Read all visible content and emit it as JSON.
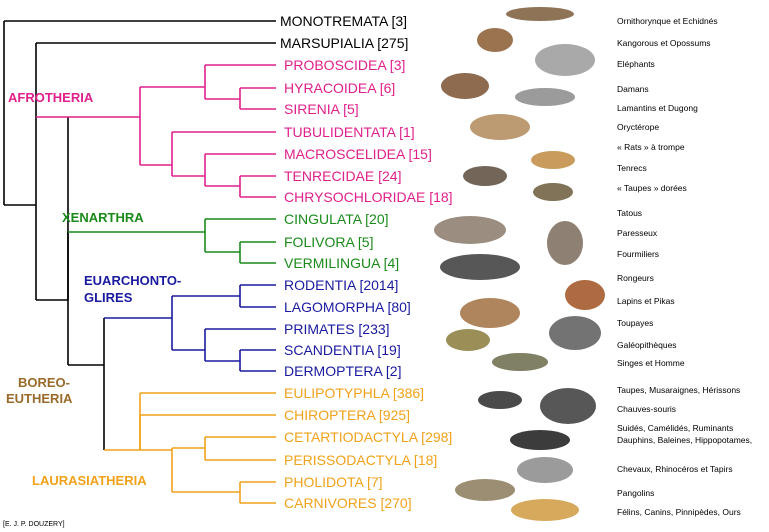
{
  "taxa": [
    {
      "name": "MONOTREMATA [3]",
      "color": "#000000",
      "common": "Ornithorynque et Echidnés"
    },
    {
      "name": "MARSUPIALIA [275]",
      "color": "#000000",
      "common": "Kangorous et Opossums"
    },
    {
      "name": "PROBOSCIDEA [3]",
      "color": "#e0208c",
      "common": "Eléphants"
    },
    {
      "name": "HYRACOIDEA [6]",
      "color": "#e0208c",
      "common": "Damans"
    },
    {
      "name": "SIRENIA [5]",
      "color": "#e0208c",
      "common": "Lamantins et Dugong"
    },
    {
      "name": "TUBULIDENTATA [1]",
      "color": "#e0208c",
      "common": "Oryctérope"
    },
    {
      "name": "MACROSCELIDEA [15]",
      "color": "#e0208c",
      "common": "« Rats » à trompe"
    },
    {
      "name": "TENRECIDAE [24]",
      "color": "#e0208c",
      "common": "Tenrecs"
    },
    {
      "name": "CHRYSOCHLORIDAE [18]",
      "color": "#e0208c",
      "common": "« Taupes » dorées"
    },
    {
      "name": "CINGULATA [20]",
      "color": "#1a8a1a",
      "common": "Tatous"
    },
    {
      "name": "FOLIVORA [5]",
      "color": "#1a8a1a",
      "common": "Paresseux"
    },
    {
      "name": "VERMILINGUA [4]",
      "color": "#1a8a1a",
      "common": "Fourmiliers"
    },
    {
      "name": "RODENTIA [2014]",
      "color": "#1a1aa0",
      "common": "Rongeurs"
    },
    {
      "name": "LAGOMORPHA [80]",
      "color": "#1a1aa0",
      "common": "Lapins et Pikas"
    },
    {
      "name": "PRIMATES [233]",
      "color": "#1a1aa0",
      "common": "Toupayes"
    },
    {
      "name": "SCANDENTIA [19]",
      "color": "#1a1aa0",
      "common": "Galéopithèques"
    },
    {
      "name": "DERMOPTERA [2]",
      "color": "#1a1aa0",
      "common": "Singes et Homme"
    },
    {
      "name": "EULIPOTYPHLA [386]",
      "color": "#f2a21a",
      "common": "Taupes, Musaraignes, Hérissons"
    },
    {
      "name": "CHIROPTERA [925]",
      "color": "#f2a21a",
      "common": "Chauves-souris"
    },
    {
      "name": "CETARTIODACTYLA [298]",
      "color": "#f2a21a",
      "common": "Suidés, Camélidés, Ruminants\nDauphins, Baleines, Hippopotames,"
    },
    {
      "name": "PERISSODACTYLA [18]",
      "color": "#f2a21a",
      "common": "Chevaux, Rhinocéros et Tapirs"
    },
    {
      "name": "PHOLIDOTA [7]",
      "color": "#f2a21a",
      "common": "Pangolins"
    },
    {
      "name": "CARNIVORES [270]",
      "color": "#f2a21a",
      "common": "Félins, Canins, Pinnipèdes, Ours"
    }
  ],
  "clades": {
    "afrotheria": "AFROTHERIA",
    "xenarthra": "XENARTHRA",
    "euarchontoglires_1": "EUARCHONTO-",
    "euarchontoglires_2": "GLIRES",
    "boreoeutheria_1": "BOREO-",
    "boreoeutheria_2": "EUTHERIA",
    "laurasiatheria": "LAURASIATHERIA"
  },
  "colors": {
    "black": "#000000",
    "afrotheria": "#e0208c",
    "xenarthra": "#1a8a1a",
    "euarchontoglires": "#1a1aa0",
    "laurasiatheria": "#f2a21a",
    "boreoeutheria": "#9a6a2a"
  },
  "credit": "[E. J. P. DOUZERY]"
}
